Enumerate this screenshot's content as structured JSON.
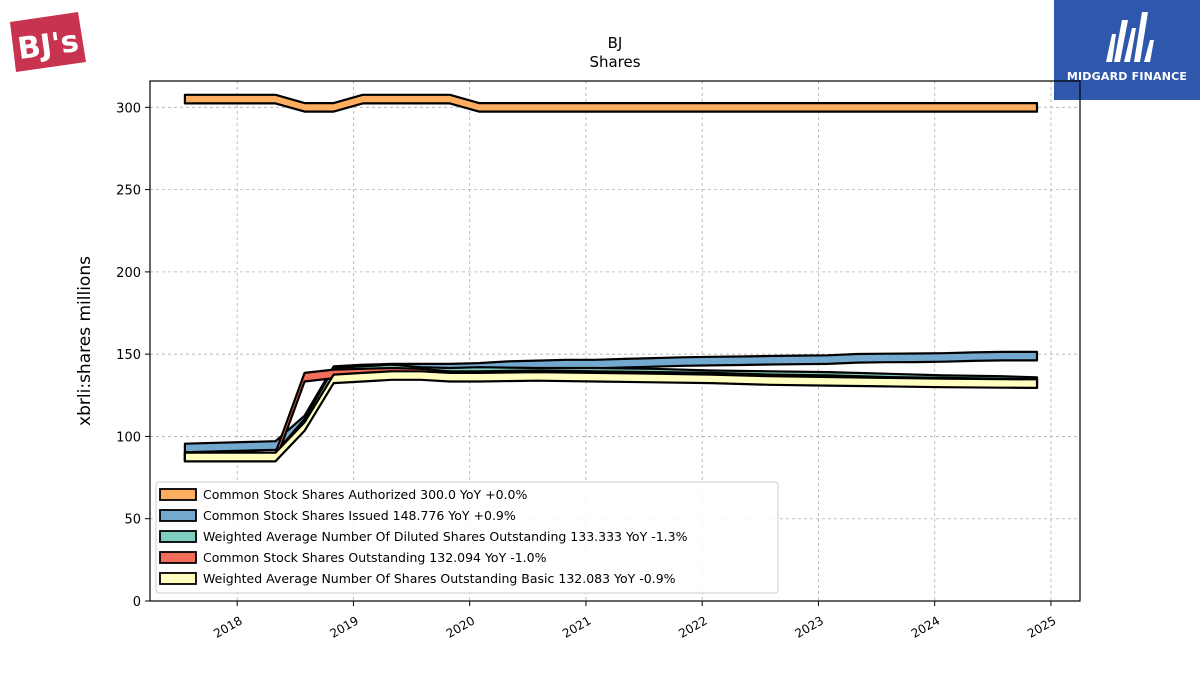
{
  "logos": {
    "left": {
      "text": "BJ's",
      "color": "#c8344f"
    },
    "right": {
      "text": "MIDGARD FINANCE",
      "color": "#2f58ac"
    }
  },
  "chart_data": {
    "type": "area",
    "title": "BJ",
    "subtitle": "Shares",
    "xlabel": "",
    "ylabel": "xbrli:shares millions",
    "ylim": [
      0,
      316
    ],
    "xlim": [
      2017.25,
      2025.25
    ],
    "yticks": [
      0,
      50,
      100,
      150,
      200,
      250,
      300
    ],
    "xticks": [
      2018,
      2019,
      2020,
      2021,
      2022,
      2023,
      2024,
      2025
    ],
    "xtick_labels": [
      "2018",
      "2019",
      "2020",
      "2021",
      "2022",
      "2023",
      "2024",
      "2025"
    ],
    "grid": true,
    "legend_position": "lower-left",
    "band_half_width": 2.6,
    "series": [
      {
        "name": "Common Stock Shares Authorized",
        "legend": "Common Stock Shares Authorized  300.0 YoY +0.0%",
        "color": "#fdae61",
        "x": [
          2017.55,
          2018.33,
          2018.58,
          2018.83,
          2019.08,
          2019.33,
          2019.58,
          2019.83,
          2020.08,
          2020.5,
          2021.0,
          2021.5,
          2022.0,
          2022.5,
          2023.0,
          2023.5,
          2024.0,
          2024.5,
          2024.88
        ],
        "y": [
          305,
          305,
          300,
          300,
          305,
          305,
          305,
          305,
          300,
          300,
          300,
          300,
          300,
          300,
          300,
          300,
          300,
          300,
          300
        ]
      },
      {
        "name": "Common Stock Shares Issued",
        "legend": "Common Stock Shares Issued  148.776 YoY +0.9%",
        "color": "#74a9cf",
        "x": [
          2017.55,
          2018.33,
          2018.58,
          2018.83,
          2019.08,
          2019.33,
          2019.58,
          2019.83,
          2020.08,
          2020.33,
          2020.58,
          2020.83,
          2021.08,
          2021.33,
          2021.58,
          2021.83,
          2022.08,
          2022.33,
          2022.58,
          2022.83,
          2023.08,
          2023.33,
          2023.58,
          2023.83,
          2024.08,
          2024.33,
          2024.58,
          2024.88
        ],
        "y": [
          93,
          94.5,
          110,
          140,
          141,
          141.5,
          141.5,
          141.5,
          142,
          143,
          143.5,
          144,
          144,
          144.5,
          145,
          145.5,
          145.8,
          146,
          146.3,
          146.5,
          146.7,
          147.5,
          147.7,
          147.8,
          148,
          148.5,
          148.8,
          148.8
        ]
      },
      {
        "name": "Weighted Average Number Of Diluted Shares Outstanding",
        "legend": "Weighted Average Number Of Diluted Shares Outstanding  133.333 YoY -1.3%",
        "color": "#80cdc1",
        "x": [
          2017.55,
          2018.33,
          2018.58,
          2018.83,
          2019.08,
          2019.33,
          2019.58,
          2019.83,
          2020.08,
          2020.58,
          2021.08,
          2021.58,
          2022.08,
          2022.58,
          2023.08,
          2023.58,
          2024.08,
          2024.58,
          2024.88
        ],
        "y": [
          87.5,
          87.5,
          108,
          139,
          140,
          141,
          139.5,
          139,
          139.5,
          139,
          139,
          138.5,
          137.5,
          137,
          136.5,
          135.5,
          134.5,
          134,
          133.3
        ]
      },
      {
        "name": "Common Stock Shares Outstanding",
        "legend": "Common Stock Shares Outstanding  132.094 YoY -1.0%",
        "color": "#f46d5a",
        "x": [
          2017.55,
          2018.33,
          2018.58,
          2018.83,
          2019.08,
          2019.33,
          2019.58,
          2019.83,
          2020.08,
          2020.58,
          2021.08,
          2021.58,
          2022.08,
          2022.58,
          2023.08,
          2023.58,
          2024.08,
          2024.58,
          2024.88
        ],
        "y": [
          87.5,
          87.5,
          136,
          138,
          138.5,
          139,
          138.5,
          137,
          137,
          137.5,
          137,
          136.5,
          136,
          135,
          134.5,
          133.5,
          133,
          132.5,
          132.1
        ]
      },
      {
        "name": "Weighted Average Number Of Shares Outstanding Basic",
        "legend": "Weighted Average Number Of Shares Outstanding Basic  132.083 YoY -0.9%",
        "color": "#ffffbf",
        "x": [
          2017.55,
          2018.33,
          2018.58,
          2018.83,
          2019.08,
          2019.33,
          2019.58,
          2019.83,
          2020.08,
          2020.58,
          2021.08,
          2021.58,
          2022.08,
          2022.58,
          2023.08,
          2023.58,
          2024.08,
          2024.58,
          2024.88
        ],
        "y": [
          87.5,
          87.5,
          106,
          135,
          136,
          137,
          137,
          136,
          136,
          136.5,
          136,
          135.5,
          135,
          134,
          133.5,
          133,
          132.5,
          132.2,
          132.1
        ]
      }
    ]
  }
}
